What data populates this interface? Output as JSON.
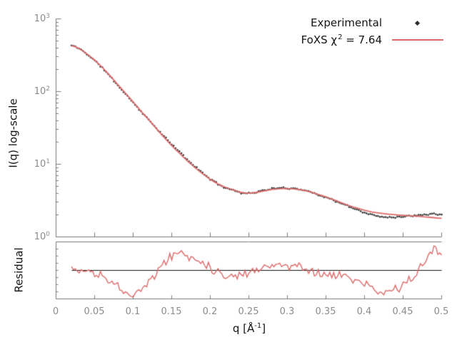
{
  "figure": {
    "background": "#ffffff"
  },
  "axes": {
    "line_color": "#7a7a7a",
    "tick_label_color": "#8c8c8c",
    "ylabel_main": "I(q) log-scale",
    "ylabel_residual": "Residual",
    "xlabel": {
      "pre": "q [Å",
      "sup": "-1",
      "post": "]"
    }
  },
  "legend": {
    "experimental": {
      "label": "Experimental",
      "marker": "diamond",
      "marker_color": "#2e2e2e"
    },
    "fit": {
      "label_pre": "FoXS χ",
      "label_sup": "2",
      "label_post": " = 7.64",
      "line_color": "#dd6b6b"
    }
  },
  "chart_data": {
    "type": "line",
    "title": "",
    "xlabel": "q [Å⁻¹]",
    "ylabel": "I(q) log-scale",
    "ylabel_bottom_panel": "Residual",
    "legend_position": "top-right",
    "grid": false,
    "x_range": [
      0,
      0.5
    ],
    "y_scale": "log10",
    "y_range": [
      1,
      1000
    ],
    "xticks": [
      {
        "label": "0",
        "value": 0
      },
      {
        "label": "0.05",
        "value": 0.05
      },
      {
        "label": "0.1",
        "value": 0.1
      },
      {
        "label": "0.15",
        "value": 0.15
      },
      {
        "label": "0.2",
        "value": 0.2
      },
      {
        "label": "0.25",
        "value": 0.25
      },
      {
        "label": "0.3",
        "value": 0.3
      },
      {
        "label": "0.35",
        "value": 0.35
      },
      {
        "label": "0.4",
        "value": 0.4
      },
      {
        "label": "0.45",
        "value": 0.45
      },
      {
        "label": "0.5",
        "value": 0.5
      }
    ],
    "yticks": [
      {
        "base": "10",
        "exp": "3",
        "value": 1000
      },
      {
        "base": "10",
        "exp": "2",
        "value": 100
      },
      {
        "base": "10",
        "exp": "1",
        "value": 10
      },
      {
        "base": "10",
        "exp": "0",
        "value": 1
      }
    ],
    "q_start": 0.02,
    "q_end": 0.5,
    "q_anchor_step": 0.01,
    "q_anchors": [
      0.02,
      0.03,
      0.04,
      0.05,
      0.06,
      0.07,
      0.08,
      0.09,
      0.1,
      0.11,
      0.12,
      0.13,
      0.14,
      0.15,
      0.16,
      0.17,
      0.18,
      0.19,
      0.2,
      0.21,
      0.22,
      0.23,
      0.24,
      0.25,
      0.26,
      0.27,
      0.28,
      0.29,
      0.3,
      0.31,
      0.32,
      0.33,
      0.34,
      0.35,
      0.36,
      0.37,
      0.38,
      0.39,
      0.4,
      0.41,
      0.42,
      0.43,
      0.44,
      0.45,
      0.46,
      0.47,
      0.48,
      0.49,
      0.5
    ],
    "series": [
      {
        "name": "Experimental",
        "type": "scatter",
        "marker": "diamond",
        "color": "#2e2e2e",
        "I_over_fit_ratio": [
          1.0,
          1.0,
          0.995,
          0.99,
          0.985,
          0.98,
          0.975,
          0.975,
          0.98,
          0.99,
          1.0,
          1.02,
          1.03,
          1.04,
          1.05,
          1.04,
          1.04,
          1.03,
          1.01,
          1.0,
          0.99,
          0.99,
          0.99,
          1.0,
          1.01,
          1.02,
          1.02,
          1.02,
          1.01,
          1.02,
          1.01,
          1.0,
          0.99,
          0.985,
          0.98,
          0.975,
          0.965,
          0.95,
          0.93,
          0.91,
          0.9,
          0.91,
          0.93,
          0.96,
          1.0,
          1.05,
          1.09,
          1.14,
          1.12
        ]
      },
      {
        "name": "FoXS χ² = 7.64",
        "type": "line",
        "color": "#dd6b6b",
        "chi2": 7.64,
        "I": [
          430,
          390,
          330,
          270,
          215,
          165,
          125,
          95,
          72,
          54,
          41,
          31,
          23.5,
          18,
          14.2,
          11.2,
          9.0,
          7.4,
          6.2,
          5.35,
          4.8,
          4.45,
          4.1,
          4.0,
          4.1,
          4.3,
          4.5,
          4.6,
          4.62,
          4.55,
          4.4,
          4.15,
          3.85,
          3.55,
          3.25,
          2.95,
          2.7,
          2.5,
          2.33,
          2.2,
          2.12,
          2.06,
          2.02,
          1.98,
          1.95,
          1.92,
          1.88,
          1.84,
          1.8
        ]
      }
    ],
    "residual": {
      "units": "sigma",
      "range": [
        -3,
        3
      ],
      "baseline": 0,
      "zero_line_color": "#111111",
      "color": "#dd6b6b",
      "values": [
        0.2,
        -0.2,
        0.1,
        -0.4,
        -0.6,
        -0.9,
        -1.7,
        -2.2,
        -2.3,
        -2.2,
        -1.1,
        -0.2,
        0.7,
        1.5,
        1.9,
        1.5,
        1.2,
        0.9,
        0.4,
        -0.2,
        -0.5,
        -0.6,
        -0.45,
        -0.2,
        0.15,
        0.45,
        0.6,
        0.5,
        0.4,
        0.5,
        0.4,
        0.0,
        -0.3,
        -0.45,
        -0.5,
        -0.6,
        -0.75,
        -1.05,
        -1.5,
        -1.95,
        -2.4,
        -2.25,
        -1.95,
        -1.5,
        -0.9,
        -0.1,
        1.0,
        2.4,
        1.3
      ]
    },
    "noise": {
      "seed": 11,
      "exp_log10_sigma": 0.007,
      "residual_sigma": 0.3
    }
  }
}
